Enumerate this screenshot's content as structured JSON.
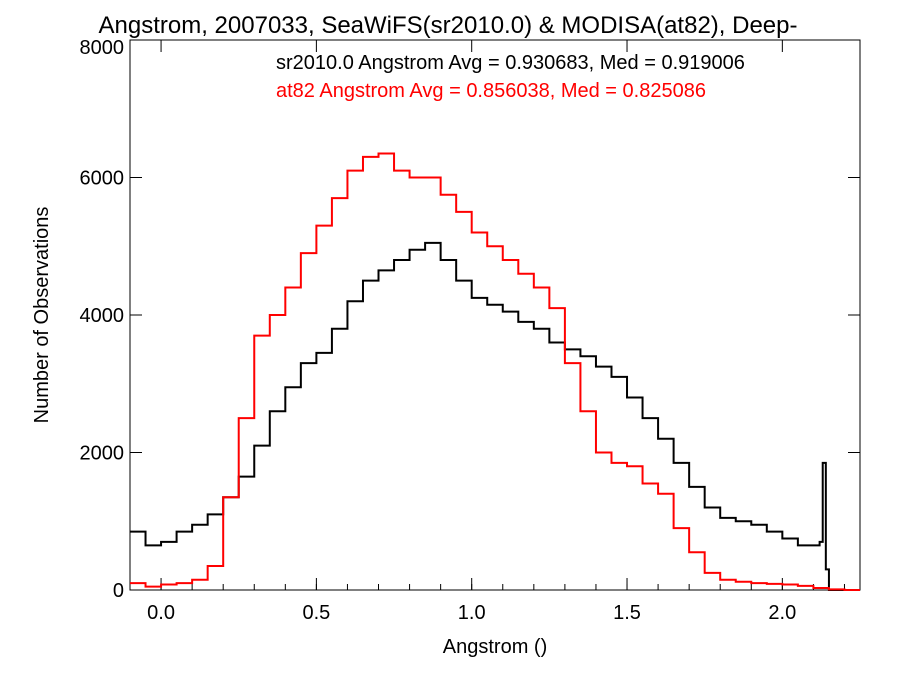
{
  "chart_data": {
    "type": "line",
    "title": "Angstrom, 2007033, SeaWiFS(sr2010.0) & MODISA(at82), Deep-",
    "xlabel": "Angstrom ()",
    "ylabel": "Number of Observations",
    "xlim": [
      -0.1,
      2.25
    ],
    "ylim": [
      0,
      8000
    ],
    "x_ticks": [
      0.0,
      0.5,
      1.0,
      1.5,
      2.0
    ],
    "x_tick_labels": [
      "0.0",
      "0.5",
      "1.0",
      "1.5",
      "2.0"
    ],
    "y_ticks": [
      0,
      2000,
      4000,
      6000,
      8000
    ],
    "y_tick_labels": [
      "0",
      "2000",
      "4000",
      "6000",
      "8000"
    ],
    "grid": false,
    "annotations": [
      {
        "text": "sr2010.0 Angstrom Avg = 0.930683, Med = 0.919006",
        "color": "#000000"
      },
      {
        "text": "at82 Angstrom Avg = 0.856038, Med = 0.825086",
        "color": "#ff0000"
      }
    ],
    "series": [
      {
        "color": "#000000",
        "x": [
          -0.1,
          -0.05,
          0.0,
          0.05,
          0.1,
          0.15,
          0.2,
          0.25,
          0.3,
          0.35,
          0.4,
          0.45,
          0.5,
          0.55,
          0.6,
          0.65,
          0.7,
          0.75,
          0.8,
          0.85,
          0.9,
          0.95,
          1.0,
          1.05,
          1.1,
          1.15,
          1.2,
          1.25,
          1.3,
          1.35,
          1.4,
          1.45,
          1.5,
          1.55,
          1.6,
          1.65,
          1.7,
          1.75,
          1.8,
          1.85,
          1.9,
          1.95,
          2.0,
          2.05,
          2.1,
          2.12,
          2.13,
          2.14,
          2.15,
          2.16,
          2.2,
          2.25
        ],
        "values": [
          850,
          650,
          700,
          850,
          950,
          1100,
          1350,
          1650,
          2100,
          2600,
          2950,
          3300,
          3450,
          3800,
          4200,
          4500,
          4650,
          4800,
          4950,
          5050,
          4800,
          4500,
          4250,
          4150,
          4050,
          3900,
          3800,
          3600,
          3500,
          3400,
          3250,
          3100,
          2800,
          2500,
          2200,
          1850,
          1500,
          1200,
          1050,
          1000,
          950,
          850,
          750,
          650,
          650,
          700,
          1850,
          300,
          0,
          0,
          0,
          0
        ]
      },
      {
        "color": "#ff0000",
        "x": [
          -0.1,
          -0.05,
          0.0,
          0.05,
          0.1,
          0.15,
          0.2,
          0.25,
          0.3,
          0.35,
          0.4,
          0.45,
          0.5,
          0.55,
          0.6,
          0.65,
          0.7,
          0.75,
          0.8,
          0.85,
          0.9,
          0.95,
          1.0,
          1.05,
          1.1,
          1.15,
          1.2,
          1.25,
          1.3,
          1.35,
          1.4,
          1.45,
          1.5,
          1.55,
          1.6,
          1.65,
          1.7,
          1.75,
          1.8,
          1.85,
          1.9,
          1.95,
          2.0,
          2.05,
          2.1,
          2.15,
          2.2,
          2.25
        ],
        "values": [
          100,
          50,
          80,
          100,
          150,
          350,
          1350,
          2500,
          3700,
          4000,
          4400,
          4900,
          5300,
          5700,
          6100,
          6300,
          6350,
          6100,
          6000,
          6000,
          5750,
          5500,
          5200,
          5000,
          4800,
          4600,
          4400,
          4100,
          3300,
          2600,
          2000,
          1850,
          1800,
          1550,
          1400,
          900,
          550,
          250,
          150,
          120,
          100,
          90,
          80,
          60,
          30,
          10,
          0,
          0
        ]
      }
    ]
  }
}
